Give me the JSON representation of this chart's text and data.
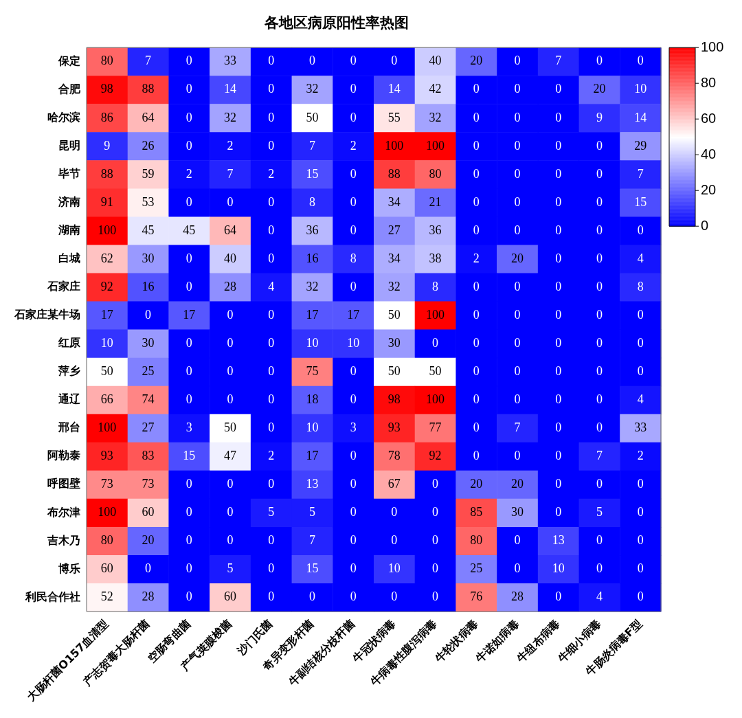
{
  "chart_data": {
    "type": "heatmap",
    "title": "各地区病原阳性率热图",
    "categories": [
      "大肠杆菌O157血清型",
      "产志贺毒大肠杆菌",
      "空肠弯曲菌",
      "产气荚膜梭菌",
      "沙门氏菌",
      "奇异变形杆菌",
      "牛副结核分枝杆菌",
      "牛冠状病毒",
      "牛病毒性腹泻病毒",
      "牛轮状病毒",
      "牛诺如病毒",
      "牛纽布病毒",
      "牛细小病毒",
      "牛肠炎病毒F型"
    ],
    "y_categories": [
      "保定",
      "合肥",
      "哈尔滨",
      "昆明",
      "毕节",
      "济南",
      "湖南",
      "白城",
      "石家庄",
      "石家庄某牛场",
      "红原",
      "萍乡",
      "通辽",
      "邢台",
      "阿勒泰",
      "呼图壁",
      "布尔津",
      "吉木乃",
      "博乐",
      "利民合作社"
    ],
    "cells": [
      [
        80,
        7,
        0,
        33,
        0,
        0,
        0,
        0,
        40,
        20,
        0,
        7,
        0,
        0
      ],
      [
        98,
        88,
        0,
        14,
        0,
        32,
        0,
        14,
        42,
        0,
        0,
        0,
        20,
        10
      ],
      [
        86,
        64,
        0,
        32,
        0,
        50,
        0,
        55,
        32,
        0,
        0,
        0,
        9,
        14
      ],
      [
        9,
        26,
        0,
        2,
        0,
        7,
        2,
        100,
        100,
        0,
        0,
        0,
        0,
        29
      ],
      [
        88,
        59,
        2,
        7,
        2,
        15,
        0,
        88,
        80,
        0,
        0,
        0,
        0,
        7
      ],
      [
        91,
        53,
        0,
        0,
        0,
        8,
        0,
        34,
        21,
        0,
        0,
        0,
        0,
        15
      ],
      [
        100,
        45,
        45,
        64,
        0,
        36,
        0,
        27,
        36,
        0,
        0,
        0,
        0,
        0
      ],
      [
        62,
        30,
        0,
        40,
        0,
        16,
        8,
        34,
        38,
        2,
        20,
        0,
        0,
        4
      ],
      [
        92,
        16,
        0,
        28,
        4,
        32,
        0,
        32,
        8,
        0,
        0,
        0,
        0,
        8
      ],
      [
        17,
        0,
        17,
        0,
        0,
        17,
        17,
        50,
        100,
        0,
        0,
        0,
        0,
        0
      ],
      [
        10,
        30,
        0,
        0,
        0,
        10,
        10,
        30,
        0,
        0,
        0,
        0,
        0,
        0
      ],
      [
        50,
        25,
        0,
        0,
        0,
        75,
        0,
        50,
        50,
        0,
        0,
        0,
        0,
        0
      ],
      [
        66,
        74,
        0,
        0,
        0,
        18,
        0,
        98,
        100,
        0,
        0,
        0,
        0,
        4
      ],
      [
        100,
        27,
        3,
        50,
        0,
        10,
        3,
        93,
        77,
        0,
        7,
        0,
        0,
        33
      ],
      [
        93,
        83,
        15,
        47,
        2,
        17,
        0,
        78,
        92,
        0,
        0,
        0,
        7,
        2
      ],
      [
        73,
        73,
        0,
        0,
        0,
        13,
        0,
        67,
        0,
        20,
        20,
        0,
        0,
        0
      ],
      [
        100,
        60,
        0,
        0,
        5,
        5,
        0,
        0,
        0,
        85,
        30,
        0,
        5,
        0
      ],
      [
        80,
        20,
        0,
        0,
        0,
        7,
        0,
        0,
        0,
        80,
        0,
        13,
        0,
        0
      ],
      [
        60,
        0,
        0,
        5,
        0,
        15,
        0,
        10,
        0,
        25,
        0,
        10,
        0,
        0
      ],
      [
        52,
        28,
        0,
        60,
        0,
        0,
        0,
        0,
        0,
        76,
        28,
        0,
        4,
        0
      ]
    ],
    "data_labels": true,
    "colors": [
      "#0000ff",
      "#ffffff",
      "#ff0000"
    ],
    "clim": [
      0,
      100
    ],
    "cticks": [
      0,
      20,
      40,
      60,
      80,
      100
    ]
  }
}
